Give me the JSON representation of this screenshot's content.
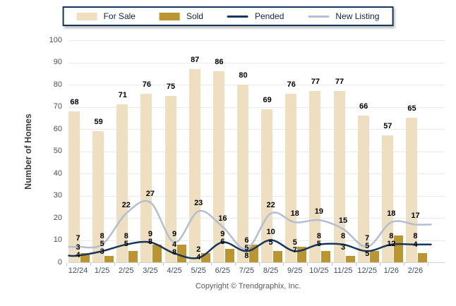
{
  "legend": {
    "items": [
      {
        "label": "For Sale"
      },
      {
        "label": "Sold"
      },
      {
        "label": "Pended"
      },
      {
        "label": "New Listing"
      }
    ]
  },
  "footer": "Copyright © Trendgraphix, Inc.",
  "colors": {
    "background": "#FFFFFF",
    "grid": "#E9E9E9",
    "axis_line": "#D2D2D2",
    "y_tick_text": "#4D4D4D",
    "x_tick_text": "#3D4D68",
    "value_label_text": "#000000",
    "legend_border": "#16365D",
    "legend_text": "#10243E",
    "y_axis_title_text": "#3D3D3D",
    "footer_text": "#595959"
  },
  "chart_data": {
    "type": "bar+line",
    "title": "",
    "xlabel": "",
    "ylabel": "Number of Homes",
    "ylim": [
      0,
      100
    ],
    "y_ticks": [
      0,
      10,
      20,
      30,
      40,
      50,
      60,
      70,
      80,
      90,
      100
    ],
    "grid": true,
    "legend_position": "top",
    "categories": [
      "12/24",
      "1/25",
      "2/25",
      "3/25",
      "4/25",
      "5/25",
      "6/25",
      "7/25",
      "8/25",
      "9/25",
      "10/25",
      "11/25",
      "12/25",
      "1/26",
      "2/26"
    ],
    "series": [
      {
        "name": "For Sale",
        "type": "bar",
        "color": "#EDDFC0",
        "values": [
          68,
          59,
          71,
          76,
          75,
          87,
          86,
          80,
          69,
          76,
          77,
          77,
          66,
          57,
          65
        ]
      },
      {
        "name": "Sold",
        "type": "bar",
        "color": "#BC9533",
        "values": [
          4,
          3,
          5,
          8,
          8,
          4,
          6,
          8,
          5,
          7,
          5,
          3,
          5,
          12,
          4
        ]
      },
      {
        "name": "Pended",
        "type": "line",
        "color": "#16365D",
        "values": [
          3,
          5,
          8,
          9,
          4,
          2,
          9,
          5,
          10,
          5,
          8,
          8,
          5,
          8,
          8
        ]
      },
      {
        "name": "New Listing",
        "type": "line",
        "color": "#B3BDD4",
        "values": [
          7,
          8,
          22,
          27,
          9,
          23,
          16,
          6,
          22,
          18,
          19,
          15,
          7,
          18,
          17
        ]
      }
    ]
  }
}
